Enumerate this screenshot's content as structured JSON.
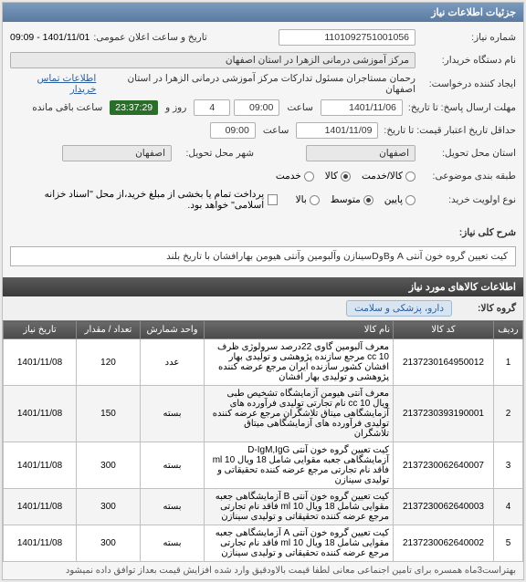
{
  "header": {
    "title": "جزئیات اطلاعات نیاز"
  },
  "fields": {
    "need_no_label": "شماره نیاز:",
    "need_no": "1101092751001056",
    "announce_label": "تاریخ و ساعت اعلان عمومی:",
    "announce_value": "1401/11/01 - 09:09",
    "buyer_label": "نام دستگاه خریدار:",
    "buyer_value": "مرکز آموزشی درمانی الزهرا در استان اصفهان",
    "creator_label": "ایجاد کننده درخواست:",
    "creator_value": "رحمان مستاجران مسئول تدارکات مرکز آموزشی درمانی الزهرا در استان اصفهان",
    "contact_link": "اطلاعات تماس خریدار",
    "deadline_label": "مهلت ارسال پاسخ: تا تاریخ:",
    "deadline_date": "1401/11/06",
    "time_label": "ساعت",
    "deadline_time": "09:00",
    "days_value": "4",
    "days_label": "روز و",
    "countdown": "23:37:29",
    "remain_label": "ساعت باقی مانده",
    "validity_label": "حداقل تاریخ اعتبار قیمت: تا تاریخ:",
    "validity_date": "1401/11/09",
    "validity_time": "09:00",
    "province_label": "استان محل تحویل:",
    "province_value": "اصفهان",
    "city_label": "شهر محل تحویل:",
    "city_value": "اصفهان",
    "subject_label": "طبقه بندی موضوعی:",
    "opt_goods": "کالا/خدمت",
    "opt_goods2": "کالا",
    "opt_service": "خدمت",
    "priority_label": "نوع اولویت خرید:",
    "opt_low": "پایین",
    "opt_mid": "متوسط",
    "opt_high": "بالا",
    "payment_note": "پرداخت تمام یا بخشی از مبلغ خرید،از محل \"اسناد خزانه اسلامی\" خواهد بود.",
    "desc_label": "شرح کلی نیاز:",
    "desc_value": "کیت تعیین گروه خون آنتی A وBوDسینازن وآلبومین وآنتی هیومن بهارافشان با تاریخ بلند",
    "goods_header": "اطلاعات کالاهای مورد نیاز",
    "group_label": "گروه کالا:",
    "group_value": "دارو، پزشکی و سلامت"
  },
  "table": {
    "headers": {
      "row": "ردیف",
      "code": "کد کالا",
      "name": "نام کالا",
      "unit": "واحد شمارش",
      "qty": "تعداد / مقدار",
      "date": "تاریخ نیاز"
    },
    "rows": [
      {
        "n": "1",
        "code": "2137230164950012",
        "name": "معرف آلبومین گاوی 22درصد سرولوژی ظرف cc 10 مرجع سازنده پژوهشی و تولیدی بهار افشان کشور سازنده ایران مرجع عرضه کننده پژوهشی و تولیدی بهار افشان",
        "unit": "عدد",
        "qty": "120",
        "date": "1401/11/08"
      },
      {
        "n": "2",
        "code": "2137230393190001",
        "name": "معرف آنتی هیومن آزمایشگاه تشخیص طبی ویال cc 10 نام تجارتی تولیدی فرآورده های آزمایشگاهی میتاق تلاشگران مرجع عرضه کننده تولیدی فرآورده های آزمایشگاهی میتاق تلاشگران",
        "unit": "بسته",
        "qty": "150",
        "date": "1401/11/08"
      },
      {
        "n": "3",
        "code": "2137230062640007",
        "name": "کیت تعیین گروه خون آنتی D-IgM,IgG آزمایشگاهی جعبه مقوایی شامل 18 ویال ml 10 فاقد نام تجارتی مرجع عرضه کننده تحقیقاتی و تولیدی سینازن",
        "unit": "بسته",
        "qty": "300",
        "date": "1401/11/08"
      },
      {
        "n": "4",
        "code": "2137230062640003",
        "name": "کیت تعیین گروه خون آنتی B آزمایشگاهی جعبه مقوایی شامل 18 ویال ml 10 فاقد نام تجارتی مرجع عرضه کننده تحقیقاتی و تولیدی سینازن",
        "unit": "بسته",
        "qty": "300",
        "date": "1401/11/08"
      },
      {
        "n": "5",
        "code": "2137230062640002",
        "name": "کیت تعیین گروه خون آنتی A آزمایشگاهی جعبه مقوایی شامل 18 ویال ml 10 فاقد نام تجارتی مرجع عرضه کننده تحقیقاتی و تولیدی سینازن",
        "unit": "بسته",
        "qty": "300",
        "date": "1401/11/08"
      }
    ]
  },
  "footer": {
    "note": "بهتراست3ماه همسره برای تامین اجنماعی معانی لطفا قیمت بالاودقیق وارد شده افزایش قیمت بعداز توافق داده نمیشود"
  }
}
